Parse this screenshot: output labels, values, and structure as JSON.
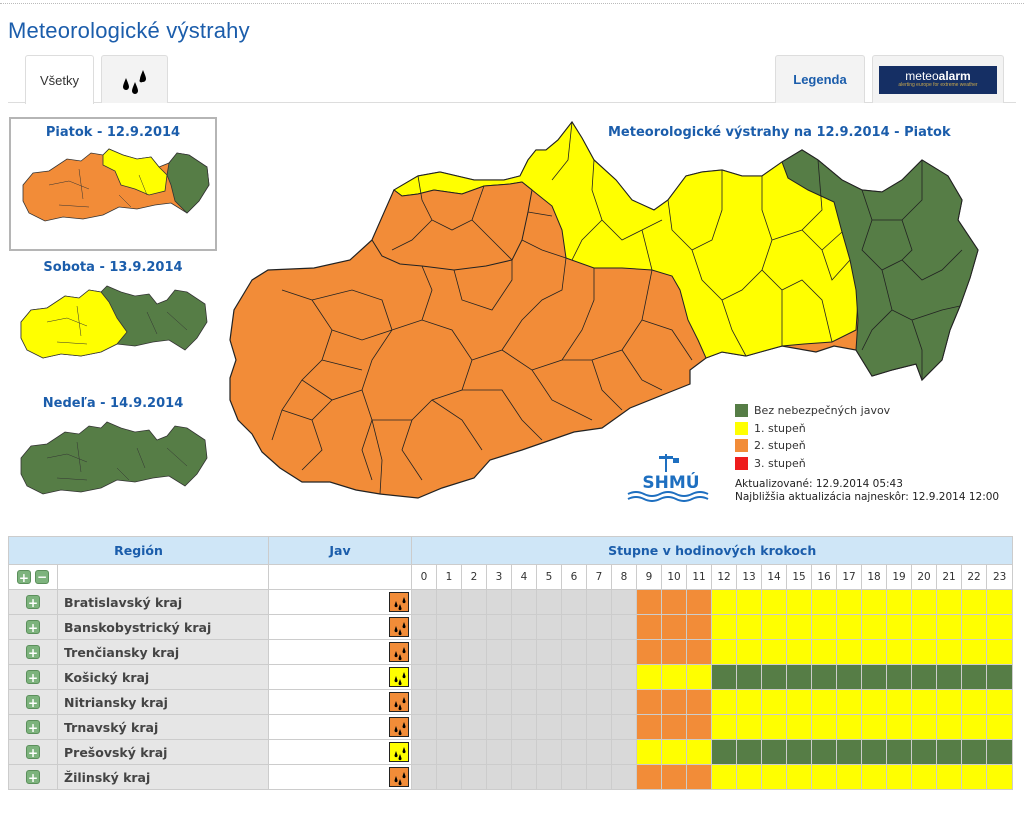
{
  "page": {
    "title": "Meteorologické výstrahy"
  },
  "tabs": {
    "all_label": "Všetky",
    "rain_icon": "rain-drops-icon",
    "legend_label": "Legenda",
    "meteoalarm": {
      "brand_a": "meteo",
      "brand_b": "alarm",
      "tagline": "alerting europe for extreme weather"
    }
  },
  "days": [
    {
      "label": "Piatok - 12.9.2014",
      "selected": true
    },
    {
      "label": "Sobota - 13.9.2014",
      "selected": false
    },
    {
      "label": "Nedeľa - 14.9.2014",
      "selected": false
    }
  ],
  "map": {
    "title": "Meteorologické výstrahy na 12.9.2014 - Piatok"
  },
  "legend": [
    {
      "label": "Bez nebezpečných javov",
      "color": "#567d46"
    },
    {
      "label": "1. stupeň",
      "color": "#ffff00"
    },
    {
      "label": "2. stupeň",
      "color": "#f28c38"
    },
    {
      "label": "3. stupeň",
      "color": "#ee1c1c"
    }
  ],
  "logo": {
    "text": "SHMÚ"
  },
  "updated": {
    "last": "Aktualizované: 12.9.2014 05:43",
    "next": "Najbližšia aktualizácia najneskôr: 12.9.2014 12:00"
  },
  "table": {
    "headers": {
      "region": "Región",
      "jav": "Jav",
      "levels": "Stupne v hodinových krokoch"
    },
    "hours": [
      "0",
      "1",
      "2",
      "3",
      "4",
      "5",
      "6",
      "7",
      "8",
      "9",
      "10",
      "11",
      "12",
      "13",
      "14",
      "15",
      "16",
      "17",
      "18",
      "19",
      "20",
      "21",
      "22",
      "23"
    ],
    "rows": [
      {
        "region": "Bratislavský kraj",
        "jav_level": 2,
        "levels": [
          0,
          0,
          0,
          0,
          0,
          0,
          0,
          0,
          0,
          2,
          2,
          2,
          1,
          1,
          1,
          1,
          1,
          1,
          1,
          1,
          1,
          1,
          1,
          1
        ]
      },
      {
        "region": "Banskobystrický kraj",
        "jav_level": 2,
        "levels": [
          0,
          0,
          0,
          0,
          0,
          0,
          0,
          0,
          0,
          2,
          2,
          2,
          1,
          1,
          1,
          1,
          1,
          1,
          1,
          1,
          1,
          1,
          1,
          1
        ]
      },
      {
        "region": "Trenčiansky kraj",
        "jav_level": 2,
        "levels": [
          0,
          0,
          0,
          0,
          0,
          0,
          0,
          0,
          0,
          2,
          2,
          2,
          1,
          1,
          1,
          1,
          1,
          1,
          1,
          1,
          1,
          1,
          1,
          1
        ]
      },
      {
        "region": "Košický kraj",
        "jav_level": 1,
        "levels": [
          0,
          0,
          0,
          0,
          0,
          0,
          0,
          0,
          0,
          1,
          1,
          1,
          -1,
          -1,
          -1,
          -1,
          -1,
          -1,
          -1,
          -1,
          -1,
          -1,
          -1,
          -1
        ]
      },
      {
        "region": "Nitriansky kraj",
        "jav_level": 2,
        "levels": [
          0,
          0,
          0,
          0,
          0,
          0,
          0,
          0,
          0,
          2,
          2,
          2,
          1,
          1,
          1,
          1,
          1,
          1,
          1,
          1,
          1,
          1,
          1,
          1
        ]
      },
      {
        "region": "Trnavský kraj",
        "jav_level": 2,
        "levels": [
          0,
          0,
          0,
          0,
          0,
          0,
          0,
          0,
          0,
          2,
          2,
          2,
          1,
          1,
          1,
          1,
          1,
          1,
          1,
          1,
          1,
          1,
          1,
          1
        ]
      },
      {
        "region": "Prešovský kraj",
        "jav_level": 1,
        "levels": [
          0,
          0,
          0,
          0,
          0,
          0,
          0,
          0,
          0,
          1,
          1,
          1,
          -1,
          -1,
          -1,
          -1,
          -1,
          -1,
          -1,
          -1,
          -1,
          -1,
          -1,
          -1
        ]
      },
      {
        "region": "Žilinský kraj",
        "jav_level": 2,
        "levels": [
          0,
          0,
          0,
          0,
          0,
          0,
          0,
          0,
          0,
          2,
          2,
          2,
          1,
          1,
          1,
          1,
          1,
          1,
          1,
          1,
          1,
          1,
          1,
          1
        ]
      }
    ],
    "level_colors": {
      "-1": "#567d46",
      "0": "#d9d9d9",
      "1": "#ffff00",
      "2": "#f28c38"
    }
  }
}
